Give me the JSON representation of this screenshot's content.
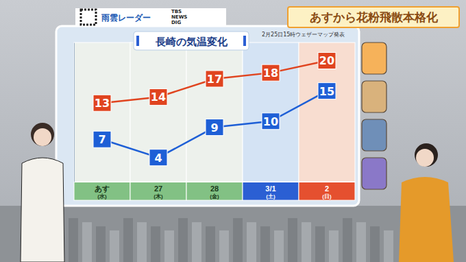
{
  "chart_data": {
    "type": "line",
    "title": "長崎の気温変化",
    "subtitle": "2月25日15時ウェザーマップ発表",
    "annotations": [
      "あすから花粉飛散本格化",
      "雨雲レーダー",
      "TBS NEWS DIG"
    ],
    "categories": [
      "あす(水)",
      "27(木)",
      "28(金)",
      "3/1(土)",
      "2(日)"
    ],
    "series": [
      {
        "color": "#e0441f",
        "marker": "square",
        "values": [
          13,
          14,
          17,
          18,
          20
        ]
      },
      {
        "color": "#1e5fd6",
        "marker": "square",
        "values": [
          7,
          4,
          9,
          10,
          15
        ]
      }
    ],
    "ylim": [
      0,
      23
    ],
    "data_labels": true,
    "tick_labels": "x"
  }
}
